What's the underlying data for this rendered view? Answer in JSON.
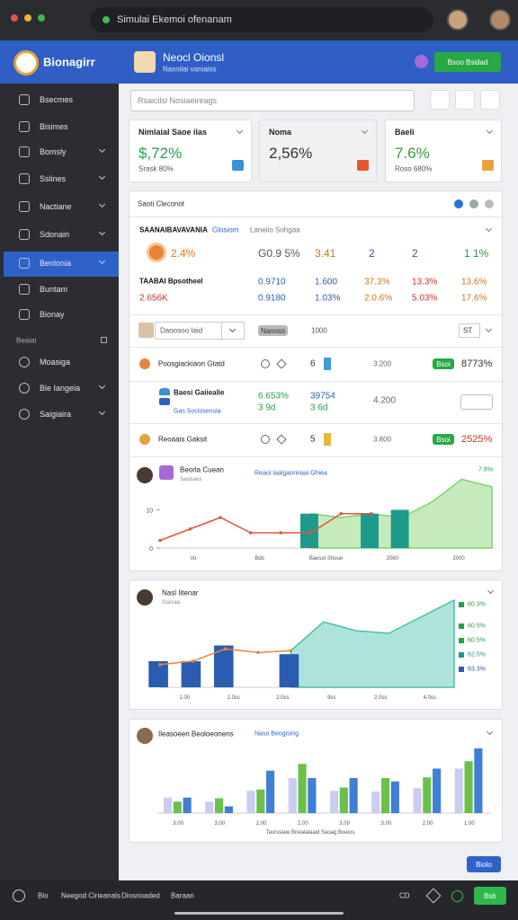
{
  "browser": {
    "title": "Simulai Ekemoi ofenanam"
  },
  "sidebar": {
    "brand": "Bionagirr",
    "items": [
      "Bsecmes",
      "Bisimes",
      "Bomsly",
      "Sslines",
      "Nactiane",
      "Sdonain",
      "Benlonia",
      "Buntam",
      "Bionay"
    ],
    "section": "Beaiai",
    "items2": [
      "Moasiga",
      "Ble Iangeia",
      "Saigiaira"
    ]
  },
  "header": {
    "title": "Neocl Oionsl",
    "subtitle": "Naxoilai vaniaiss",
    "button": "Bsoo Bsidad"
  },
  "search": {
    "placeholder": "Rsaicilsl Nosiaeireags"
  },
  "kpis": [
    {
      "title": "Nimlaial Saoe ilas",
      "value": "$,72%",
      "note": "Srask 80%"
    },
    {
      "title": "Noma",
      "value": "2,56%"
    },
    {
      "title": "Baeli",
      "value": "7.6%",
      "note": "Roso 680%"
    }
  ],
  "table": {
    "title": "Saoti Cleconot",
    "group": [
      "SAANAIBAVAVANIA",
      "Glosiom",
      "Laneiio Sohgaa"
    ],
    "row1": [
      "2.4%",
      "G0.9 5%",
      "3.41",
      "2",
      "2",
      "1 1%"
    ],
    "group2": "TAABAI Bpsotheel",
    "row2": [
      "0.9710",
      "1.600",
      "37.3%",
      "13.3%",
      "13.6%"
    ],
    "row3": [
      "2.656K",
      "0.9180",
      "1.03%",
      "2.0.6%",
      "5.03%",
      "17.6%"
    ],
    "toolbar": [
      "Daoosoo Iaid",
      "Nanoss",
      "1000",
      "ST"
    ],
    "items": [
      {
        "name": "Poosgiackiaon Gtatd",
        "cells": [
          "6",
          "3.200"
        ],
        "status": "Bsoi",
        "change": "8773%"
      },
      {
        "name": "Baesi Gaiiealie",
        "sub": "Gas Sociosensia",
        "cells": [
          "6.653%",
          "3 9d",
          "39754",
          "3 6d",
          "4.200"
        ]
      },
      {
        "name": "Reoaais Gaksit",
        "cells": [
          "5",
          "3.800"
        ],
        "status": "Bsoi",
        "change": "2525%"
      }
    ]
  },
  "charts": [
    {
      "title": "Beorla Cuean",
      "subtitle": "Sasisaes",
      "legend": "Reaoi Iaalgaoreiaai Ghiea",
      "tag": "7.8%",
      "ylim": [
        0,
        20
      ],
      "yticks": [
        0,
        10
      ],
      "xlabels": [
        "Vo",
        "Bdo",
        "Baesoi Shoue",
        "2060",
        "2000"
      ],
      "series": [
        {
          "type": "area",
          "color": "#7fd36a",
          "values": [
            null,
            null,
            null,
            null,
            null,
            9,
            8,
            9,
            8,
            12,
            18,
            16
          ]
        },
        {
          "type": "bar",
          "color": "#1e9a8c",
          "values": [
            null,
            null,
            null,
            null,
            null,
            9,
            null,
            9,
            10,
            null,
            null,
            null
          ]
        },
        {
          "type": "line",
          "color": "#e0553a",
          "values": [
            2,
            5,
            8,
            4,
            4,
            4,
            9,
            9,
            null,
            null,
            null,
            null
          ]
        }
      ]
    },
    {
      "title": "Nasl Iitenar",
      "subtitle": "Ssesaa",
      "ylim": [
        0,
        100
      ],
      "xlabels": [
        "1.00",
        "1.0ss",
        "2.0ss",
        "9ss",
        "2.0ss",
        "4.0ss"
      ],
      "legend_values": [
        "60.3%",
        "60.5%",
        "60.5%",
        "62.5%",
        "63.3%"
      ],
      "series": [
        {
          "type": "area",
          "color": "#4cc2ae",
          "values": [
            null,
            null,
            null,
            null,
            42,
            75,
            65,
            62,
            81,
            100
          ]
        },
        {
          "type": "bar",
          "color": "#2a5db0",
          "values": [
            30,
            30,
            48,
            null,
            38,
            null,
            null,
            null,
            null,
            null
          ]
        },
        {
          "type": "line",
          "color": "#e8843a",
          "values": [
            26,
            30,
            44,
            40,
            42,
            null,
            null,
            null,
            null,
            null
          ]
        }
      ]
    },
    {
      "title": "Ileasoeen Beoloeonens",
      "legend": "Naso Beogising",
      "caption": "Tasrsslaie Bnealalaaid Saoag Boeios",
      "ylim": [
        0,
        100
      ],
      "xlabels": [
        "3.00",
        "3.00",
        "2.00",
        "2.00",
        "3.00",
        "3.00",
        "2.00",
        "1.00"
      ],
      "series": [
        {
          "type": "bar",
          "color": "#c9cdf0",
          "values": [
            23,
            17,
            33,
            52,
            33,
            32,
            37,
            66
          ]
        },
        {
          "type": "bar",
          "color": "#6cc04a",
          "values": [
            17,
            22,
            35,
            73,
            38,
            52,
            53,
            77
          ]
        },
        {
          "type": "bar",
          "color": "#3f7fd6",
          "values": [
            23,
            10,
            63,
            52,
            52,
            47,
            66,
            96
          ]
        }
      ]
    }
  ],
  "fab": "Biolo",
  "footer": {
    "links": [
      "Bio",
      "Neegod Cirieanals",
      "Diosrioaded",
      "Baraan"
    ],
    "code": "CD",
    "button": "Bsb"
  }
}
